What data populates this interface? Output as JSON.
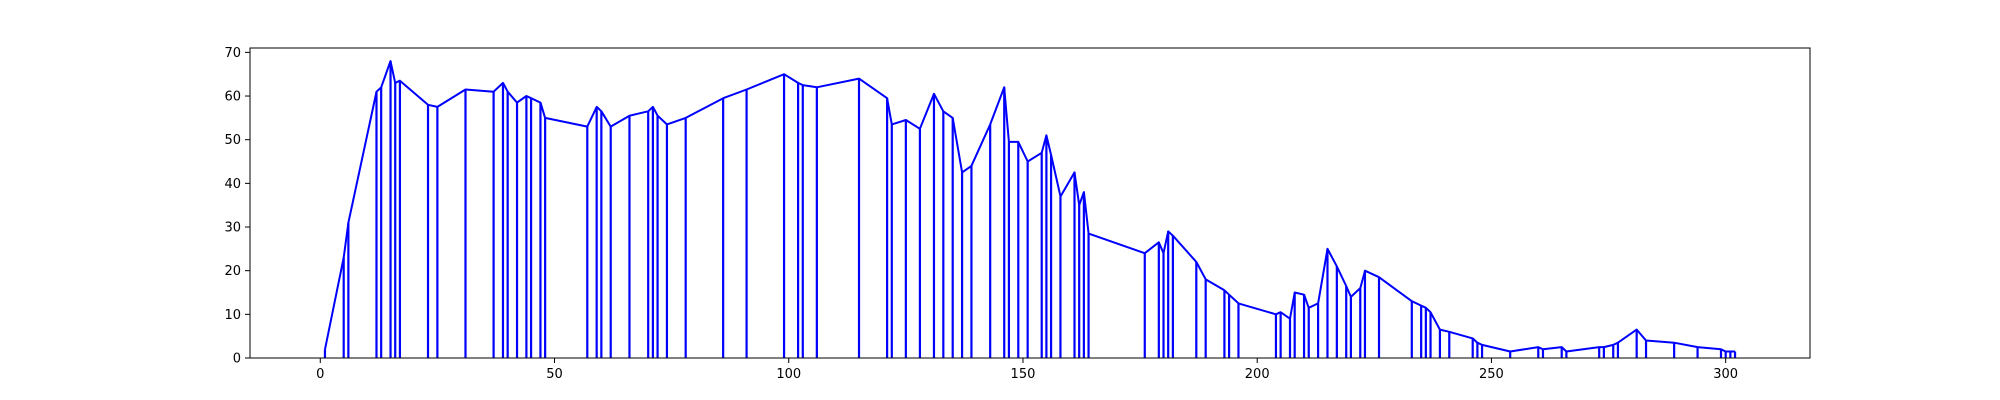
{
  "chart_data": {
    "type": "line",
    "title": "",
    "xlabel": "",
    "ylabel": "",
    "xlim": [
      -15,
      318
    ],
    "ylim": [
      0,
      71
    ],
    "grid": false,
    "legend": "none",
    "x_ticks": [
      0,
      50,
      100,
      150,
      200,
      250,
      300
    ],
    "y_ticks": [
      0,
      10,
      20,
      30,
      40,
      50,
      60,
      70
    ],
    "x_tick_labels": [
      "0",
      "50",
      "100",
      "150",
      "200",
      "250",
      "300"
    ],
    "y_tick_labels": [
      "0",
      "10",
      "20",
      "30",
      "40",
      "50",
      "60",
      "70"
    ],
    "color": "#0000ff",
    "render_as": "line with vertical drop lines to zero",
    "series": [
      {
        "x": [
          1,
          5,
          6,
          12,
          13,
          15,
          16,
          17,
          23,
          25,
          31,
          37,
          39,
          40,
          42,
          44,
          45,
          47,
          48,
          57,
          59,
          60,
          62,
          66,
          70,
          71,
          72,
          74,
          78,
          86,
          91,
          99,
          102,
          103,
          106,
          115,
          121,
          122,
          125,
          128,
          131,
          133,
          135,
          137,
          139,
          143,
          146,
          147,
          149,
          151,
          154,
          155,
          156,
          158,
          161,
          162,
          163,
          164,
          176,
          179,
          180,
          181,
          182,
          187,
          189,
          193,
          194,
          196,
          204,
          205,
          207,
          208,
          210,
          211,
          213,
          215,
          217,
          219,
          220,
          222,
          223,
          226,
          233,
          235,
          236,
          237,
          239,
          241,
          246,
          247,
          248,
          254,
          260,
          261,
          265,
          266,
          273,
          274,
          276,
          277,
          281,
          283,
          289,
          294,
          299,
          300,
          301,
          302
        ],
        "y": [
          2,
          23,
          31,
          61,
          62,
          68,
          63,
          63.5,
          58,
          57.5,
          61.5,
          61,
          63,
          61,
          58.5,
          60,
          59.5,
          58.5,
          55,
          53,
          57.5,
          56.5,
          53,
          55.5,
          56.5,
          57.5,
          55.5,
          53.5,
          55,
          59.5,
          61.5,
          65,
          63,
          62.5,
          62,
          64,
          59.5,
          53.5,
          54.5,
          52.5,
          60.5,
          56.5,
          55,
          42.5,
          44,
          53.5,
          62,
          49.5,
          49.5,
          45,
          47,
          51,
          46.5,
          37,
          42.5,
          35,
          38,
          28.5,
          24,
          26.5,
          24,
          29,
          28,
          22,
          18,
          15.5,
          14.5,
          12.5,
          10,
          10.5,
          9,
          15,
          14.5,
          11.5,
          12.5,
          25,
          21,
          16.5,
          14,
          16,
          20,
          18.5,
          13,
          12,
          11.5,
          10.5,
          6.5,
          6,
          4.5,
          3.5,
          3,
          1.5,
          2.5,
          2,
          2.5,
          1.5,
          2.5,
          2.5,
          3,
          3.5,
          6.5,
          4,
          3.5,
          2.5,
          2,
          1.5,
          1.5,
          1.5
        ]
      }
    ]
  }
}
